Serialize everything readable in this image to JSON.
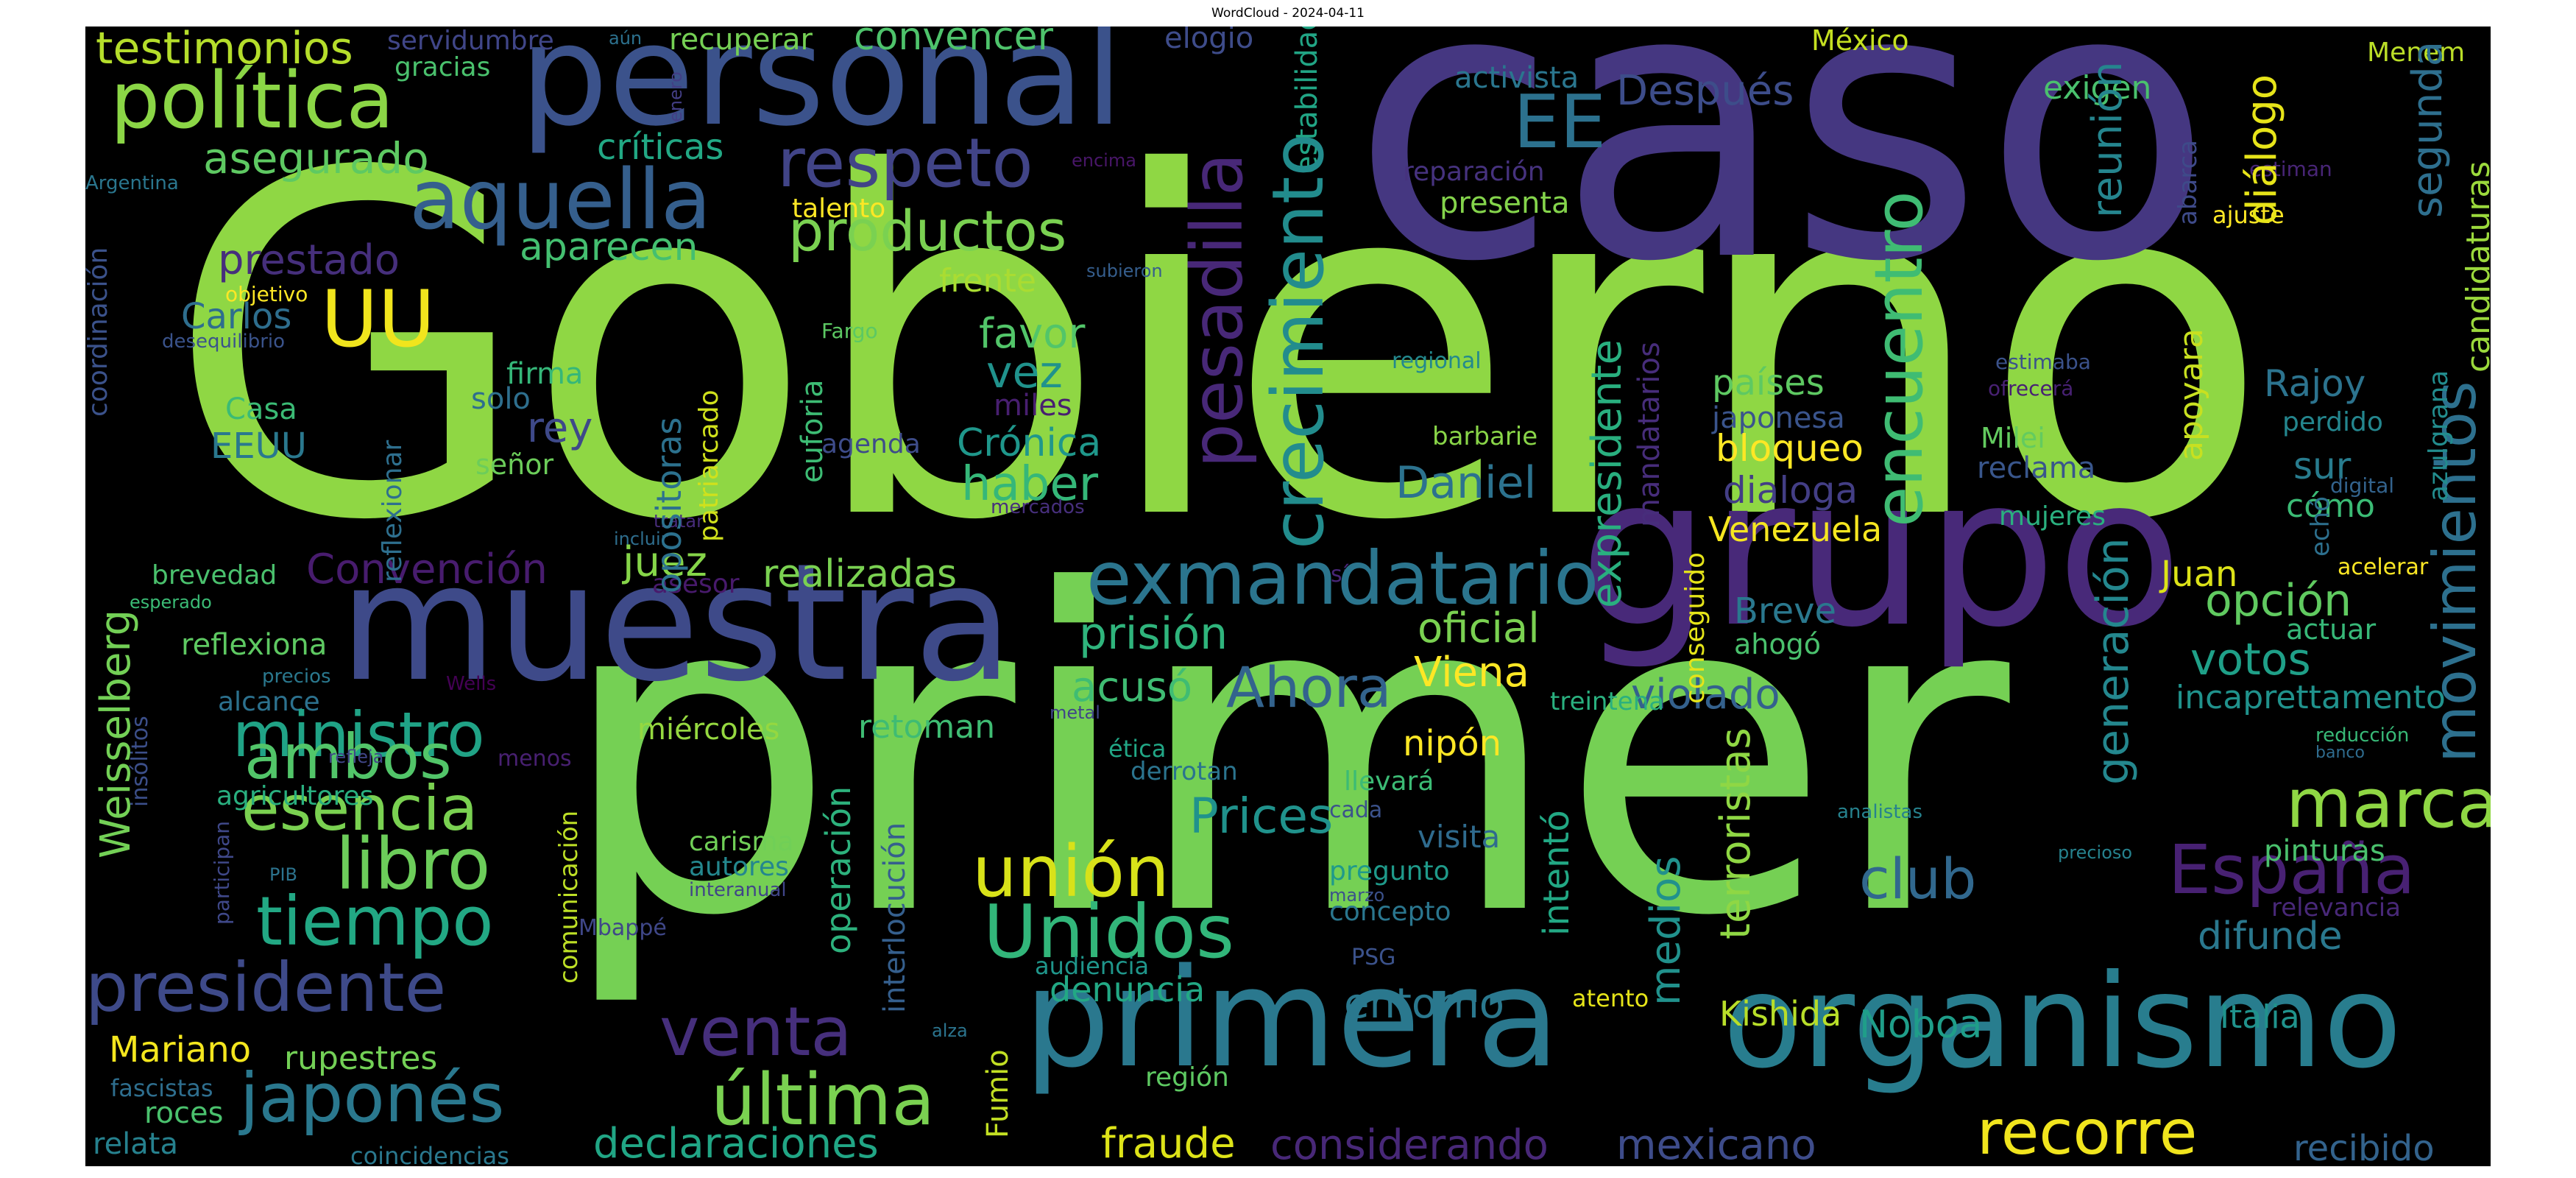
{
  "title": "WordCloud - 2024-04-11",
  "words": [
    {
      "text": "Gobierno",
      "color": "#8fd744"
    },
    {
      "text": "caso",
      "color": "#453781"
    },
    {
      "text": "primer",
      "color": "#75d054"
    },
    {
      "text": "personal",
      "color": "#3b528b"
    },
    {
      "text": "grupo",
      "color": "#482979"
    },
    {
      "text": "muestra",
      "color": "#3e4a89"
    },
    {
      "text": "organismo",
      "color": "#287d8e"
    },
    {
      "text": "primera",
      "color": "#2a788e"
    },
    {
      "text": "política",
      "color": "#8bd646"
    },
    {
      "text": "testimonios",
      "color": "#b5de2b"
    },
    {
      "text": "servidumbre",
      "color": "#404688"
    },
    {
      "text": "aún",
      "color": "#2c718e"
    },
    {
      "text": "recuperar",
      "color": "#75d054"
    },
    {
      "text": "convencer",
      "color": "#4ec36b"
    },
    {
      "text": "elogio",
      "color": "#3e4c8a"
    },
    {
      "text": "estabilidad",
      "color": "#21a585"
    },
    {
      "text": "México",
      "color": "#c5e021"
    },
    {
      "text": "Menem",
      "color": "#bade28"
    },
    {
      "text": "gracias",
      "color": "#4ac16d"
    },
    {
      "text": "enero",
      "color": "#433e85"
    },
    {
      "text": "respeto",
      "color": "#414487"
    },
    {
      "text": "aquella",
      "color": "#355f8d"
    },
    {
      "text": "asegurado",
      "color": "#5ec962"
    },
    {
      "text": "críticas",
      "color": "#22a884"
    },
    {
      "text": "Argentina",
      "color": "#2a768e"
    },
    {
      "text": "productos",
      "color": "#7ad151"
    },
    {
      "text": "prestado",
      "color": "#462f7c"
    },
    {
      "text": "aparecen",
      "color": "#44bf70"
    },
    {
      "text": "talento",
      "color": "#fde725"
    },
    {
      "text": "encima",
      "color": "#481668"
    },
    {
      "text": "UU",
      "color": "#f1e51d"
    },
    {
      "text": "EE",
      "color": "#2c718e"
    },
    {
      "text": "activista",
      "color": "#2a768e"
    },
    {
      "text": "Después",
      "color": "#3d4d8a"
    },
    {
      "text": "reparación",
      "color": "#46327e"
    },
    {
      "text": "presenta",
      "color": "#84d44b"
    },
    {
      "text": "exigen",
      "color": "#4ac16d"
    },
    {
      "text": "abarca",
      "color": "#3e4a89"
    },
    {
      "text": "estiman",
      "color": "#482576"
    },
    {
      "text": "ajuste",
      "color": "#fde725"
    },
    {
      "text": "reunión",
      "color": "#25858e"
    },
    {
      "text": "diálogo",
      "color": "#e7e419"
    },
    {
      "text": "segunda",
      "color": "#2e6f8e"
    },
    {
      "text": "candidaturas",
      "color": "#9bd93c"
    },
    {
      "text": "pesadilla",
      "color": "#482878"
    },
    {
      "text": "crecimiento",
      "color": "#228c8d"
    },
    {
      "text": "encuentro",
      "color": "#3fbc73"
    },
    {
      "text": "expresidente",
      "color": "#29af7f"
    },
    {
      "text": "mandatarios",
      "color": "#472d7b"
    },
    {
      "text": "movimientos",
      "color": "#2d708e"
    },
    {
      "text": "objetivo",
      "color": "#fde725"
    },
    {
      "text": "desequilibrio",
      "color": "#3a538b"
    },
    {
      "text": "coordinación",
      "color": "#3b528b"
    },
    {
      "text": "frente",
      "color": "#aadc32"
    },
    {
      "text": "subieron",
      "color": "#355e8d"
    },
    {
      "text": "Carlos",
      "color": "#2e6e8e"
    },
    {
      "text": "favor",
      "color": "#52c569"
    },
    {
      "text": "vez",
      "color": "#20928c"
    },
    {
      "text": "miles",
      "color": "#481f70"
    },
    {
      "text": "Fargo",
      "color": "#5cc863"
    },
    {
      "text": "regional",
      "color": "#23898e"
    },
    {
      "text": "estimaba",
      "color": "#3b528b"
    },
    {
      "text": "ofrecerá",
      "color": "#482173"
    },
    {
      "text": "Rajoy",
      "color": "#2c738e"
    },
    {
      "text": "apoyara",
      "color": "#c8e020"
    },
    {
      "text": "azulgrana",
      "color": "#228c8d"
    },
    {
      "text": "Casa",
      "color": "#3bbb75"
    },
    {
      "text": "EEUU",
      "color": "#2a788e"
    },
    {
      "text": "firma",
      "color": "#35b779"
    },
    {
      "text": "solo",
      "color": "#2e6f8e"
    },
    {
      "text": "rey",
      "color": "#3e4989"
    },
    {
      "text": "señor",
      "color": "#6ccd5a"
    },
    {
      "text": "opositoras",
      "color": "#2c718e"
    },
    {
      "text": "patriarcado",
      "color": "#d0e11c"
    },
    {
      "text": "euforia",
      "color": "#3dbc74"
    },
    {
      "text": "agenda",
      "color": "#3e4c8a"
    },
    {
      "text": "Crónica",
      "color": "#1f978b"
    },
    {
      "text": "haber",
      "color": "#35b779"
    },
    {
      "text": "mercados",
      "color": "#472f7d"
    },
    {
      "text": "Daniel",
      "color": "#2c728e"
    },
    {
      "text": "barbarie",
      "color": "#89d548"
    },
    {
      "text": "países",
      "color": "#5ec962"
    },
    {
      "text": "japonesa",
      "color": "#3a548c"
    },
    {
      "text": "bloqueo",
      "color": "#fde725"
    },
    {
      "text": "dialoga",
      "color": "#433e85"
    },
    {
      "text": "Venezuela",
      "color": "#f6e620"
    },
    {
      "text": "Milei",
      "color": "#63cb5f"
    },
    {
      "text": "reclama",
      "color": "#39568c"
    },
    {
      "text": "perdido",
      "color": "#24868e"
    },
    {
      "text": "cómo",
      "color": "#3bbb75"
    },
    {
      "text": "sur",
      "color": "#287c8e"
    },
    {
      "text": "mujeres",
      "color": "#2ab07f"
    },
    {
      "text": "digital",
      "color": "#33638d"
    },
    {
      "text": "echó",
      "color": "#2d708e"
    },
    {
      "text": "reflexionar",
      "color": "#2e6f8e"
    },
    {
      "text": "tratar",
      "color": "#472c7a"
    },
    {
      "text": "incluir",
      "color": "#2e6e8e"
    },
    {
      "text": "sí",
      "color": "#482677"
    },
    {
      "text": "exmandatario",
      "color": "#2b758e"
    },
    {
      "text": "Convención",
      "color": "#481c6e"
    },
    {
      "text": "juez",
      "color": "#86d549"
    },
    {
      "text": "asesor",
      "color": "#481a6c"
    },
    {
      "text": "realizadas",
      "color": "#7ad151"
    },
    {
      "text": "Juan",
      "color": "#dde318"
    },
    {
      "text": "opción",
      "color": "#60ca60"
    },
    {
      "text": "acelerar",
      "color": "#fde725"
    },
    {
      "text": "actuar",
      "color": "#37b878"
    },
    {
      "text": "Breve",
      "color": "#2a788e"
    },
    {
      "text": "ahogó",
      "color": "#4ac16d"
    },
    {
      "text": "votos",
      "color": "#1fa088"
    },
    {
      "text": "conseguido",
      "color": "#e5e419"
    },
    {
      "text": "oficial",
      "color": "#7ad151"
    },
    {
      "text": "prisión",
      "color": "#2fb47c"
    },
    {
      "text": "Ahora",
      "color": "#33638d"
    },
    {
      "text": "acusó",
      "color": "#3fbc73"
    },
    {
      "text": "Viena",
      "color": "#fde725"
    },
    {
      "text": "violado",
      "color": "#34618d"
    },
    {
      "text": "treintena",
      "color": "#2ab07f"
    },
    {
      "text": "incaprettamento",
      "color": "#20928c"
    },
    {
      "text": "nipón",
      "color": "#fde725"
    },
    {
      "text": "brevedad",
      "color": "#4ac16d"
    },
    {
      "text": "esperado",
      "color": "#3bbb75"
    },
    {
      "text": "reflexiona",
      "color": "#5ec962"
    },
    {
      "text": "precios",
      "color": "#2a788e"
    },
    {
      "text": "alcance",
      "color": "#2c718e"
    },
    {
      "text": "Weisselberg",
      "color": "#73d056"
    },
    {
      "text": "ministro",
      "color": "#20a386"
    },
    {
      "text": "ambos",
      "color": "#52c569"
    },
    {
      "text": "Wells",
      "color": "#440154"
    },
    {
      "text": "insólitos",
      "color": "#3c4f8a"
    },
    {
      "text": "menos",
      "color": "#482071"
    },
    {
      "text": "esencia",
      "color": "#7ad151"
    },
    {
      "text": "miércoles",
      "color": "#95d840"
    },
    {
      "text": "operación",
      "color": "#2db27d"
    },
    {
      "text": "retoman",
      "color": "#3fbc73"
    },
    {
      "text": "metal",
      "color": "#404588"
    },
    {
      "text": "ética",
      "color": "#21a685"
    },
    {
      "text": "derrotan",
      "color": "#2b748e"
    },
    {
      "text": "llevará",
      "color": "#3cbb75"
    },
    {
      "text": "cada",
      "color": "#3b528b"
    },
    {
      "text": "Prices",
      "color": "#20928c"
    },
    {
      "text": "visita",
      "color": "#2f6b8e"
    },
    {
      "text": "marca",
      "color": "#8fd744"
    },
    {
      "text": "generación",
      "color": "#24878e"
    },
    {
      "text": "reducción",
      "color": "#38b977"
    },
    {
      "text": "banco",
      "color": "#2f6c8e"
    },
    {
      "text": "analistas",
      "color": "#26828e"
    },
    {
      "text": "agricultores",
      "color": "#29af7f"
    },
    {
      "text": "refleja",
      "color": "#404688"
    },
    {
      "text": "terroristas",
      "color": "#8fd744"
    },
    {
      "text": "medios",
      "color": "#21918c"
    },
    {
      "text": "intentó",
      "color": "#22a884"
    },
    {
      "text": "unión",
      "color": "#d8e219"
    },
    {
      "text": "carisma",
      "color": "#70cf57"
    },
    {
      "text": "autores",
      "color": "#24878e"
    },
    {
      "text": "libro",
      "color": "#6ccd5a"
    },
    {
      "text": "tiempo",
      "color": "#22a884"
    },
    {
      "text": "participan",
      "color": "#3f4889"
    },
    {
      "text": "PIB",
      "color": "#2c738e"
    },
    {
      "text": "comunicación",
      "color": "#bddf26"
    },
    {
      "text": "interanual",
      "color": "#404588"
    },
    {
      "text": "interlocución",
      "color": "#355f8d"
    },
    {
      "text": "Unidos",
      "color": "#32b67a"
    },
    {
      "text": "pregunto",
      "color": "#1f9a8a"
    },
    {
      "text": "marzo",
      "color": "#3b518b"
    },
    {
      "text": "concepto",
      "color": "#2a768e"
    },
    {
      "text": "club",
      "color": "#31688e"
    },
    {
      "text": "España",
      "color": "#482173"
    },
    {
      "text": "pinturas",
      "color": "#4ac16d"
    },
    {
      "text": "precioso",
      "color": "#26828e"
    },
    {
      "text": "relevancia",
      "color": "#482878"
    },
    {
      "text": "difunde",
      "color": "#2a788e"
    },
    {
      "text": "presidente",
      "color": "#3e4a89"
    },
    {
      "text": "Mbappé",
      "color": "#3f4788"
    },
    {
      "text": "audiencia",
      "color": "#1f968b"
    },
    {
      "text": "denuncia",
      "color": "#22a884"
    },
    {
      "text": "PSG",
      "color": "#3b528b"
    },
    {
      "text": "atento",
      "color": "#e5e419"
    },
    {
      "text": "entorno",
      "color": "#2a788e"
    },
    {
      "text": "Kishida",
      "color": "#b8de29"
    },
    {
      "text": "Noboa",
      "color": "#1f9e89"
    },
    {
      "text": "Italia",
      "color": "#20928c"
    },
    {
      "text": "venta",
      "color": "#462f7c"
    },
    {
      "text": "Mariano",
      "color": "#f4e61e"
    },
    {
      "text": "rupestres",
      "color": "#73d056"
    },
    {
      "text": "japonés",
      "color": "#2a788e"
    },
    {
      "text": "alza",
      "color": "#2b748e"
    },
    {
      "text": "Fumio",
      "color": "#c2df23"
    },
    {
      "text": "región",
      "color": "#5ec962"
    },
    {
      "text": "fascistas",
      "color": "#2e6e8e"
    },
    {
      "text": "roces",
      "color": "#4ac16d"
    },
    {
      "text": "relata",
      "color": "#26818e"
    },
    {
      "text": "última",
      "color": "#7ad151"
    },
    {
      "text": "recorre",
      "color": "#f1e51d"
    },
    {
      "text": "coincidencias",
      "color": "#2a788e"
    },
    {
      "text": "declaraciones",
      "color": "#21a685"
    },
    {
      "text": "fraude",
      "color": "#dde318"
    },
    {
      "text": "considerando",
      "color": "#482878"
    },
    {
      "text": "mexicano",
      "color": "#3e4c8a"
    },
    {
      "text": "recibido",
      "color": "#33638d"
    }
  ]
}
